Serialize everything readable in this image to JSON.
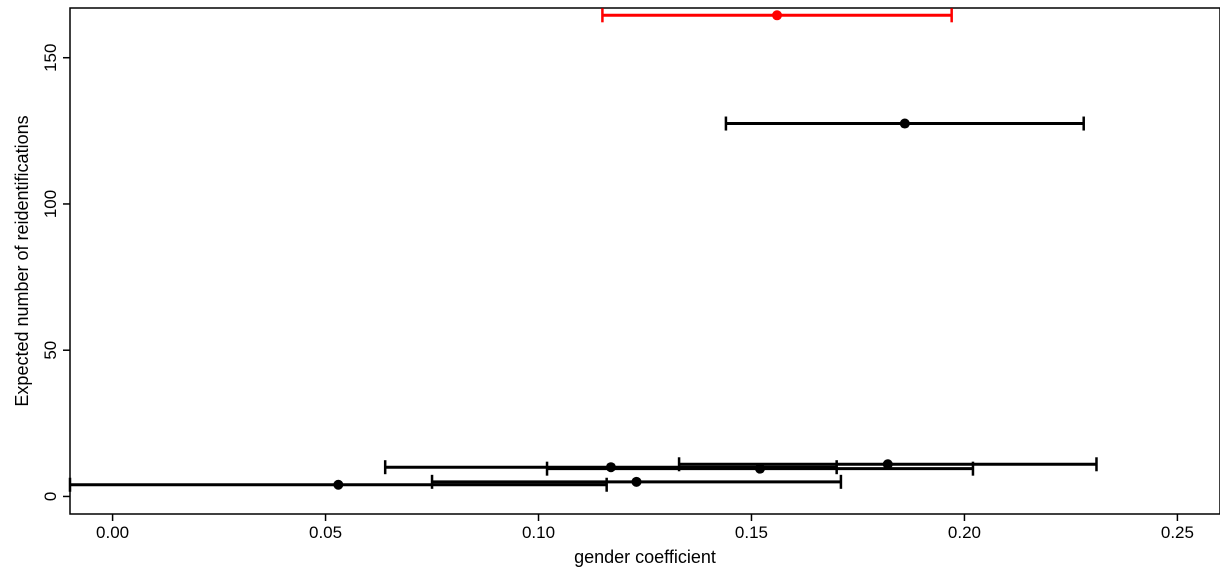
{
  "chart_data": {
    "type": "scatter",
    "title": "",
    "xlabel": "gender coefficient",
    "ylabel": "Expected number of reidentifications",
    "xlim": [
      -0.01,
      0.26
    ],
    "ylim": [
      -6,
      167
    ],
    "xticks": [
      0.0,
      0.05,
      0.1,
      0.15,
      0.2,
      0.25
    ],
    "xtick_labels": [
      "0.00",
      "0.05",
      "0.10",
      "0.15",
      "0.20",
      "0.25"
    ],
    "yticks": [
      0,
      50,
      100,
      150
    ],
    "ytick_labels": [
      "0",
      "50",
      "100",
      "150"
    ],
    "grid": false,
    "legend": "none",
    "colors": {
      "default": "#000000",
      "highlight": "#ff0000"
    },
    "points": [
      {
        "x": 0.156,
        "y": 164.5,
        "xmin": 0.115,
        "xmax": 0.197,
        "highlight": true
      },
      {
        "x": 0.186,
        "y": 127.5,
        "xmin": 0.144,
        "xmax": 0.228,
        "highlight": false
      },
      {
        "x": 0.182,
        "y": 11,
        "xmin": 0.133,
        "xmax": 0.231,
        "highlight": false
      },
      {
        "x": 0.117,
        "y": 10,
        "xmin": 0.064,
        "xmax": 0.17,
        "highlight": false
      },
      {
        "x": 0.152,
        "y": 9.5,
        "xmin": 0.102,
        "xmax": 0.202,
        "highlight": false
      },
      {
        "x": 0.123,
        "y": 5,
        "xmin": 0.075,
        "xmax": 0.171,
        "highlight": false
      },
      {
        "x": 0.053,
        "y": 4,
        "xmin": -0.01,
        "xmax": 0.116,
        "highlight": false
      }
    ]
  }
}
